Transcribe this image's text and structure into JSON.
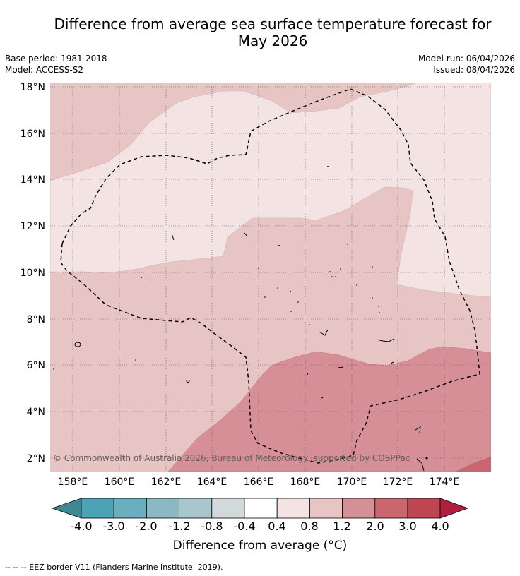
{
  "title_line1": "Difference from average sea surface temperature forecast for",
  "title_line2": "May 2026",
  "base_period": "Base period: 1981-2018",
  "model": "Model: ACCESS-S2",
  "model_run": "Model run: 06/04/2026",
  "issued": "Issued: 08/04/2026",
  "lat_labels": [
    "18°N",
    "16°N",
    "14°N",
    "12°N",
    "10°N",
    "8°N",
    "6°N",
    "4°N",
    "2°N"
  ],
  "lon_labels": [
    "158°E",
    "160°E",
    "162°E",
    "164°E",
    "166°E",
    "168°E",
    "170°E",
    "172°E",
    "174°E"
  ],
  "copyright": "© Commonwealth of Australia 2026, Bureau of Meteorology, supported by COSPPac",
  "colorbar": {
    "labels": [
      "-4.0",
      "-3.0",
      "-2.0",
      "-1.2",
      "-0.8",
      "-0.4",
      "0.4",
      "0.8",
      "1.2",
      "2.0",
      "3.0",
      "4.0"
    ],
    "colors": [
      "#3f8794",
      "#4aa4b5",
      "#69afbf",
      "#8cb8c4",
      "#a8c6cb",
      "#d1d9db",
      "#ffffff",
      "#f3e3e3",
      "#e7c5c4",
      "#d68f96",
      "#c96670",
      "#c04553",
      "#b0203e"
    ],
    "title": "Difference from average (°C)"
  },
  "footer": "--  --  -- EEZ border V11 (Flanders Marine Institute, 2019)."
}
